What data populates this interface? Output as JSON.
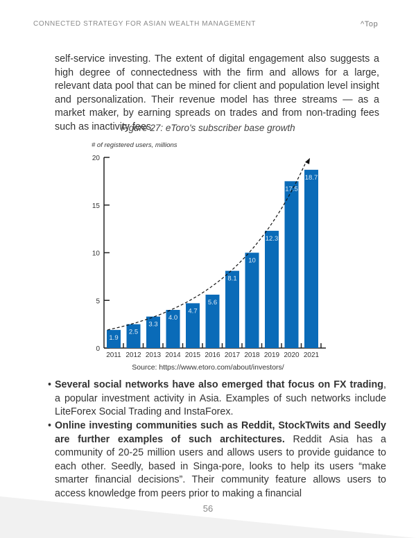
{
  "header": {
    "title": "CONNECTED STRATEGY FOR ASIAN WEALTH MANAGEMENT",
    "top_link": "Top"
  },
  "paragraph": "self-service investing. The extent of digital engagement also suggests a high degree of connectedness with the firm and allows for a large, relevant data pool that can be mined for client and population level insight and personalization. Their revenue model has three streams — as a market maker, by earning spreads on trades and from non-trading fees such as inactivity fees.",
  "figure": {
    "caption": "Figure 27: eToro's subscriber base growth",
    "source": "Source: https://www.etoro.com/about/investors/"
  },
  "chart_data": {
    "type": "bar",
    "title": "Figure 27: eToro's subscriber base growth",
    "ylabel": "# of registered users, millions",
    "categories": [
      "2011",
      "2012",
      "2013",
      "2014",
      "2015",
      "2016",
      "2017",
      "2018",
      "2019",
      "2020",
      "2021"
    ],
    "values": [
      1.9,
      2.5,
      3.3,
      4.0,
      4.7,
      5.6,
      8.1,
      10,
      12.3,
      17.5,
      18.7
    ],
    "labels": [
      "1.9",
      "2.5",
      "3.3",
      "4.0",
      "4.7",
      "5.6",
      "8.1",
      "10",
      "12.3",
      "17.5",
      "18.7"
    ],
    "yticks": [
      "0",
      "5",
      "10",
      "15",
      "20"
    ],
    "ylim": [
      0,
      20
    ],
    "trendline": "dashed exponential with arrow",
    "color": "#0a6bb8"
  },
  "bullets": [
    {
      "bold": "Several social networks have also emerged that focus on FX trading",
      "text": ", a popular investment activity in Asia. Examples of such networks include LiteForex Social Trading and InstaForex."
    },
    {
      "bold": "Online investing communities such as Reddit, StockTwits and Seedly are further examples of such architectures.",
      "text": " Reddit Asia has a community of 20-25 million users and allows users to provide guidance to each other. Seedly, based in Singa-pore, looks to help its users “make smarter financial decisions”. Their community feature allows users to access knowledge from peers prior to making a financial"
    }
  ],
  "page_number": "56"
}
